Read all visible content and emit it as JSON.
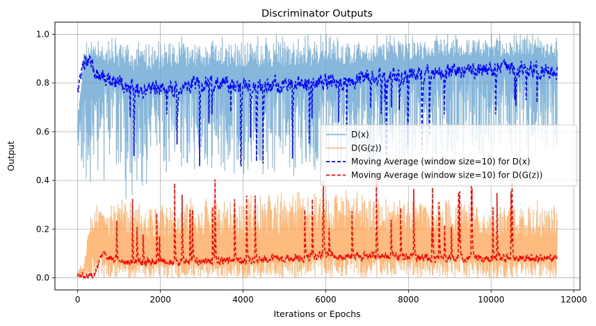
{
  "chart_data": {
    "type": "line",
    "title": "Discriminator Outputs",
    "xlabel": "Iterations or Epochs",
    "ylabel": "Output",
    "xlim": [
      -550,
      12150
    ],
    "ylim": [
      -0.05,
      1.05
    ],
    "xticks": [
      0,
      2000,
      4000,
      6000,
      8000,
      10000,
      12000
    ],
    "yticks": [
      0.0,
      0.2,
      0.4,
      0.6,
      0.8,
      1.0
    ],
    "xtick_labels": [
      "0",
      "2000",
      "4000",
      "6000",
      "8000",
      "10000",
      "12000"
    ],
    "ytick_labels": [
      "0.0",
      "0.2",
      "0.4",
      "0.6",
      "0.8",
      "1.0"
    ],
    "grid": true,
    "legend_position": "center-right",
    "series": [
      {
        "name": "D(x)",
        "color": "#5f9fcf",
        "style": "solid",
        "x": [
          0,
          150,
          300,
          500,
          700,
          1000,
          1300,
          1600,
          2000,
          2400,
          2800,
          3200,
          3600,
          4000,
          4500,
          5000,
          5500,
          6000,
          6500,
          7000,
          7500,
          8000,
          8500,
          9000,
          9500,
          10000,
          10500,
          11000,
          11600
        ],
        "upper": [
          0.68,
          0.93,
          0.97,
          0.98,
          0.97,
          0.96,
          0.95,
          0.95,
          0.96,
          0.97,
          0.96,
          0.96,
          0.96,
          0.97,
          0.97,
          0.97,
          0.97,
          0.98,
          0.97,
          0.97,
          0.98,
          0.97,
          0.98,
          0.98,
          0.98,
          0.98,
          0.98,
          0.98,
          0.97
        ],
        "lower": [
          0.55,
          0.45,
          0.4,
          0.4,
          0.35,
          0.35,
          0.35,
          0.4,
          0.45,
          0.45,
          0.45,
          0.45,
          0.45,
          0.45,
          0.45,
          0.45,
          0.45,
          0.45,
          0.45,
          0.45,
          0.45,
          0.5,
          0.5,
          0.5,
          0.5,
          0.5,
          0.5,
          0.5,
          0.5
        ],
        "center": [
          0.6,
          0.83,
          0.88,
          0.85,
          0.82,
          0.8,
          0.78,
          0.79,
          0.78,
          0.78,
          0.8,
          0.8,
          0.8,
          0.79,
          0.79,
          0.8,
          0.8,
          0.81,
          0.81,
          0.82,
          0.83,
          0.84,
          0.85,
          0.85,
          0.86,
          0.86,
          0.86,
          0.86,
          0.85
        ]
      },
      {
        "name": "D(G(z))",
        "color": "#ffa352",
        "style": "solid",
        "x": [
          0,
          150,
          300,
          500,
          700,
          1000,
          1300,
          1600,
          2000,
          2400,
          2800,
          3200,
          3600,
          4000,
          4500,
          5000,
          5500,
          6000,
          6500,
          7000,
          7500,
          8000,
          8500,
          9000,
          9500,
          10000,
          10500,
          11000,
          11600
        ],
        "upper": [
          0.03,
          0.05,
          0.25,
          0.3,
          0.3,
          0.3,
          0.28,
          0.28,
          0.3,
          0.3,
          0.3,
          0.32,
          0.32,
          0.32,
          0.32,
          0.32,
          0.33,
          0.34,
          0.34,
          0.33,
          0.33,
          0.32,
          0.32,
          0.32,
          0.3,
          0.3,
          0.3,
          0.3,
          0.3
        ],
        "lower": [
          0.0,
          0.0,
          0.0,
          0.0,
          0.0,
          0.0,
          0.0,
          0.0,
          0.0,
          0.0,
          0.0,
          0.0,
          0.0,
          0.0,
          0.0,
          0.0,
          0.0,
          0.0,
          0.0,
          0.0,
          0.0,
          0.0,
          0.0,
          0.0,
          0.0,
          0.0,
          0.0,
          0.0,
          0.0
        ],
        "center": [
          0.01,
          0.02,
          0.08,
          0.1,
          0.08,
          0.07,
          0.07,
          0.07,
          0.07,
          0.07,
          0.07,
          0.07,
          0.07,
          0.07,
          0.08,
          0.08,
          0.09,
          0.09,
          0.09,
          0.09,
          0.09,
          0.08,
          0.08,
          0.08,
          0.08,
          0.08,
          0.08,
          0.08,
          0.08
        ]
      },
      {
        "name": "Moving Average (window size=10) for D(x)",
        "color": "#0000ff",
        "style": "dashed",
        "x": [
          0,
          100,
          200,
          300,
          400,
          500,
          700,
          900,
          1200,
          1500,
          1800,
          2100,
          2400,
          2800,
          3200,
          3600,
          4000,
          4500,
          5000,
          5500,
          6000,
          6500,
          7000,
          7500,
          8000,
          8500,
          9000,
          9500,
          10000,
          10500,
          11000,
          11600
        ],
        "y": [
          0.78,
          0.86,
          0.9,
          0.87,
          0.85,
          0.83,
          0.82,
          0.81,
          0.79,
          0.78,
          0.78,
          0.78,
          0.78,
          0.8,
          0.8,
          0.8,
          0.79,
          0.79,
          0.79,
          0.8,
          0.8,
          0.81,
          0.82,
          0.83,
          0.83,
          0.84,
          0.85,
          0.85,
          0.86,
          0.86,
          0.86,
          0.85
        ],
        "spread": 0.05
      },
      {
        "name": "Moving Average (window size=10) for D(G(z))",
        "color": "#ff0000",
        "style": "dashed",
        "x": [
          0,
          200,
          400,
          600,
          800,
          1000,
          1300,
          1600,
          2000,
          2400,
          2800,
          3200,
          3600,
          4000,
          4500,
          5000,
          5500,
          6000,
          6500,
          7000,
          7500,
          8000,
          8500,
          9000,
          9500,
          10000,
          10500,
          11000,
          11600
        ],
        "y": [
          0.01,
          0.0,
          0.02,
          0.1,
          0.08,
          0.07,
          0.065,
          0.065,
          0.065,
          0.065,
          0.065,
          0.07,
          0.07,
          0.07,
          0.075,
          0.08,
          0.085,
          0.09,
          0.09,
          0.09,
          0.09,
          0.085,
          0.08,
          0.08,
          0.08,
          0.08,
          0.08,
          0.08,
          0.08
        ],
        "spread": 0.025
      }
    ]
  }
}
